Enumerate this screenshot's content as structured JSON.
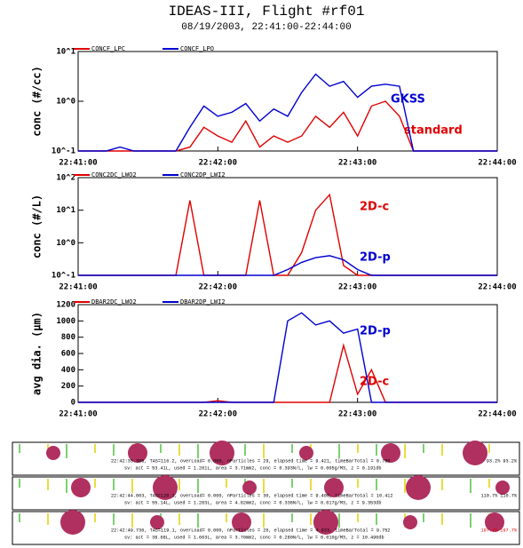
{
  "title": "IDEAS-III, Flight #rf01",
  "subtitle": "08/19/2003, 22:41:00-22:44:00",
  "chart_data": [
    {
      "type": "line",
      "ylabel": "conc (#/cc)",
      "log": true,
      "ylim": [
        0.1,
        10
      ],
      "yticks": [
        {
          "value": 0.1,
          "label": "10^-1"
        },
        {
          "value": 1,
          "label": "10^0"
        },
        {
          "value": 10,
          "label": "10^1"
        }
      ],
      "xlim": [
        "22:41:00",
        "22:44:00"
      ],
      "xticks": [
        "22:41:00",
        "22:42:00",
        "22:43:00",
        "22:44:00"
      ],
      "annotations": [
        "standard",
        "GKSS"
      ],
      "x": [
        "22:41:00",
        "22:41:06",
        "22:41:12",
        "22:41:18",
        "22:41:24",
        "22:41:30",
        "22:41:36",
        "22:41:42",
        "22:41:48",
        "22:41:54",
        "22:42:00",
        "22:42:06",
        "22:42:12",
        "22:42:18",
        "22:42:24",
        "22:42:30",
        "22:42:36",
        "22:42:42",
        "22:42:48",
        "22:42:54",
        "22:43:00",
        "22:43:06",
        "22:43:12",
        "22:43:18",
        "22:43:24",
        "22:43:30",
        "22:43:36",
        "22:43:42",
        "22:43:48",
        "22:43:54",
        "22:44:00"
      ],
      "series": [
        {
          "name": "CONCF_LPC",
          "color": "#e00000",
          "values": [
            0.1,
            0.1,
            0.1,
            0.1,
            0.1,
            0.1,
            0.1,
            0.1,
            0.12,
            0.3,
            0.2,
            0.15,
            0.4,
            0.12,
            0.2,
            0.15,
            0.2,
            0.5,
            0.3,
            0.6,
            0.2,
            0.8,
            1.0,
            0.5,
            0.1,
            0.1,
            0.1,
            0.1,
            0.1,
            0.1,
            0.1
          ]
        },
        {
          "name": "CONCF_LPO",
          "color": "#0000d0",
          "values": [
            0.1,
            0.1,
            0.1,
            0.12,
            0.1,
            0.1,
            0.1,
            0.1,
            0.3,
            0.8,
            0.5,
            0.6,
            0.9,
            0.4,
            0.7,
            0.5,
            1.5,
            3.5,
            2.0,
            2.5,
            1.2,
            2.0,
            2.2,
            2.0,
            0.1,
            0.1,
            0.1,
            0.1,
            0.1,
            0.1,
            0.1
          ]
        }
      ]
    },
    {
      "type": "line",
      "ylabel": "conc (#/L)",
      "log": true,
      "ylim": [
        0.1,
        100
      ],
      "yticks": [
        {
          "value": 0.1,
          "label": "10^-1"
        },
        {
          "value": 1,
          "label": "10^0"
        },
        {
          "value": 10,
          "label": "10^1"
        },
        {
          "value": 100,
          "label": "10^2"
        }
      ],
      "xlim": [
        "22:41:00",
        "22:44:00"
      ],
      "xticks": [
        "22:41:00",
        "22:42:00",
        "22:43:00",
        "22:44:00"
      ],
      "annotations": [
        "2D-c",
        "2D-p"
      ],
      "x": [
        "22:41:00",
        "22:41:06",
        "22:41:12",
        "22:41:18",
        "22:41:24",
        "22:41:30",
        "22:41:36",
        "22:41:42",
        "22:41:48",
        "22:41:54",
        "22:42:00",
        "22:42:06",
        "22:42:12",
        "22:42:18",
        "22:42:24",
        "22:42:30",
        "22:42:36",
        "22:42:42",
        "22:42:48",
        "22:42:54",
        "22:43:00",
        "22:43:06",
        "22:43:12",
        "22:43:18",
        "22:43:24",
        "22:43:30",
        "22:43:36",
        "22:43:42",
        "22:43:48",
        "22:43:54",
        "22:44:00"
      ],
      "series": [
        {
          "name": "CONC2DC_LWO2",
          "color": "#e00000",
          "values": [
            0.1,
            0.1,
            0.1,
            0.1,
            0.1,
            0.1,
            0.1,
            0.1,
            20,
            0.1,
            0.1,
            0.1,
            0.1,
            20,
            0.1,
            0.1,
            0.5,
            10,
            30,
            0.2,
            0.1,
            0.1,
            0.1,
            0.1,
            0.1,
            0.1,
            0.1,
            0.1,
            0.1,
            0.1,
            0.1
          ]
        },
        {
          "name": "CONC2DP_LWI2",
          "color": "#0000d0",
          "values": [
            0.1,
            0.1,
            0.1,
            0.1,
            0.1,
            0.1,
            0.1,
            0.1,
            0.1,
            0.1,
            0.1,
            0.1,
            0.1,
            0.1,
            0.1,
            0.15,
            0.25,
            0.35,
            0.4,
            0.3,
            0.15,
            0.1,
            0.1,
            0.1,
            0.1,
            0.1,
            0.1,
            0.1,
            0.1,
            0.1,
            0.1
          ]
        }
      ]
    },
    {
      "type": "line",
      "ylabel": "avg dia. (μm)",
      "log": false,
      "ylim": [
        0,
        1200
      ],
      "yticks": [
        0,
        200,
        400,
        600,
        800,
        1000,
        1200
      ],
      "xlim": [
        "22:41:00",
        "22:44:00"
      ],
      "xticks": [
        "22:41:00",
        "22:42:00",
        "22:43:00",
        "22:44:00"
      ],
      "annotations": [
        "2D-c",
        "2D-p"
      ],
      "x": [
        "22:41:00",
        "22:41:06",
        "22:41:12",
        "22:41:18",
        "22:41:24",
        "22:41:30",
        "22:41:36",
        "22:41:42",
        "22:41:48",
        "22:41:54",
        "22:42:00",
        "22:42:06",
        "22:42:12",
        "22:42:18",
        "22:42:24",
        "22:42:30",
        "22:42:36",
        "22:42:42",
        "22:42:48",
        "22:42:54",
        "22:43:00",
        "22:43:06",
        "22:43:12",
        "22:43:18",
        "22:43:24",
        "22:43:30",
        "22:43:36",
        "22:43:42",
        "22:43:48",
        "22:43:54",
        "22:44:00"
      ],
      "series": [
        {
          "name": "DBAR2DC_LWO2",
          "color": "#e00000",
          "values": [
            0,
            0,
            0,
            0,
            0,
            0,
            0,
            0,
            0,
            0,
            20,
            0,
            0,
            0,
            0,
            0,
            0,
            0,
            0,
            700,
            100,
            400,
            0,
            0,
            0,
            0,
            0,
            0,
            0,
            0,
            0
          ]
        },
        {
          "name": "DBAR2DP_LWI2",
          "color": "#0000d0",
          "values": [
            0,
            0,
            0,
            0,
            0,
            0,
            0,
            0,
            0,
            0,
            0,
            0,
            0,
            0,
            0,
            1000,
            1100,
            950,
            1000,
            850,
            900,
            0,
            0,
            0,
            0,
            0,
            0,
            0,
            0,
            0,
            0
          ]
        }
      ]
    }
  ],
  "strips": [
    {
      "line1": "22:42:35.395, TAS=116.2, overLoad= 0.000, nParticles = 29, elapsed time = 9.421, timeBarTotal =  0.780",
      "pct": "93.2% 93.2%",
      "line2": "sv: act = 53.41L, used = 1.261L, area = 3.71mm2, conc = 0.393N/L, lw = 0.005g/M3, z = 0.191db"
    },
    {
      "line1": "22:42:44.803, TAS=120.1, overLoad= 0.000, nParticles = 30, elapsed time = 9.400, timeBarTotal = 10.412",
      "pct": "110.7% 110.7%",
      "line2": "sv: act = 55.14L, used = 1.283L, area = 4.82mm2, conc = 0.338N/L, lw = 0.017g/M3, z = 9.353db"
    },
    {
      "line1": "22:42:49.736, TAS=119.1, overLoad= 0.000, nParticles = 26, elapsed time = 4.933, timeBarTotal =  9.752",
      "pct": "197.7% 197.7%",
      "line2": "sv: act = 38.68L, used = 1.663L, area = 3.70mm2, conc = 0.280N/L, lw = 0.010g/M3, z = 10.490db"
    }
  ]
}
